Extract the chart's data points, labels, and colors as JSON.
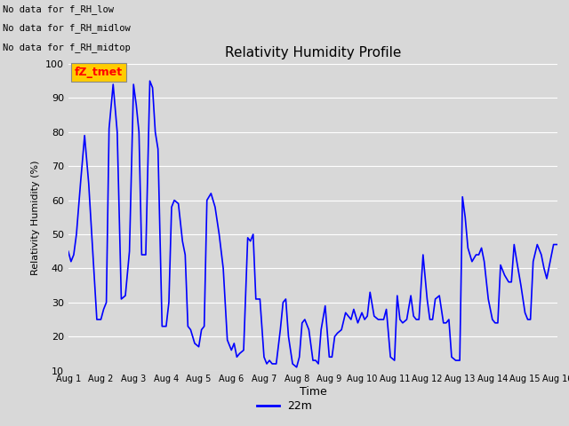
{
  "title": "Relativity Humidity Profile",
  "xlabel": "Time",
  "ylabel": "Relativity Humidity (%)",
  "ylim": [
    10,
    100
  ],
  "yticks": [
    10,
    20,
    30,
    40,
    50,
    60,
    70,
    80,
    90,
    100
  ],
  "line_color": "blue",
  "line_width": 1.2,
  "legend_label": "22m",
  "legend_line_color": "blue",
  "fig_bg_color": "#d8d8d8",
  "plot_bg_color": "#d8d8d8",
  "grid_color": "white",
  "annotations_left": [
    "No data for f_RH_low",
    "No data for f_RH_midlow",
    "No data for f_RH_midtop"
  ],
  "annotation_box_text": "fZ_tmet",
  "annotation_box_color": "#ffcc00",
  "annotation_box_text_color": "red",
  "x_tick_labels": [
    "Aug 1",
    "Aug 2",
    "Aug 3",
    "Aug 4",
    "Aug 5",
    "Aug 6",
    "Aug 7",
    "Aug 8",
    "Aug 9",
    "Aug 10",
    "Aug 11",
    "Aug 12",
    "Aug 13",
    "Aug 14",
    "Aug 15",
    "Aug 16"
  ],
  "x_tick_positions": [
    0,
    24,
    48,
    72,
    96,
    120,
    144,
    168,
    192,
    216,
    240,
    264,
    288,
    312,
    336,
    360
  ],
  "xlim": [
    0,
    360
  ],
  "data_x": [
    0,
    2,
    4,
    6,
    9,
    12,
    15,
    18,
    21,
    24,
    26,
    28,
    30,
    33,
    36,
    39,
    42,
    45,
    48,
    50,
    52,
    54,
    57,
    60,
    62,
    64,
    66,
    69,
    72,
    74,
    76,
    78,
    81,
    84,
    86,
    88,
    90,
    93,
    96,
    98,
    100,
    102,
    105,
    108,
    111,
    114,
    117,
    120,
    122,
    124,
    126,
    129,
    132,
    134,
    136,
    138,
    141,
    144,
    146,
    148,
    150,
    153,
    156,
    158,
    160,
    162,
    165,
    168,
    170,
    172,
    174,
    177,
    180,
    182,
    184,
    186,
    189,
    192,
    194,
    196,
    198,
    201,
    204,
    206,
    208,
    210,
    213,
    216,
    218,
    220,
    222,
    225,
    228,
    230,
    232,
    234,
    237,
    240,
    242,
    244,
    246,
    249,
    252,
    254,
    256,
    258,
    261,
    264,
    266,
    268,
    270,
    273,
    276,
    278,
    280,
    282,
    285,
    288,
    290,
    292,
    294,
    297,
    300,
    302,
    304,
    306,
    309,
    312,
    314,
    316,
    318,
    321,
    324,
    326,
    328,
    330,
    333,
    336,
    338,
    340,
    342,
    345,
    348,
    350,
    352,
    354,
    357,
    360
  ],
  "data_y": [
    45,
    42,
    44,
    50,
    65,
    79,
    65,
    45,
    25,
    25,
    28,
    30,
    81,
    94,
    80,
    31,
    32,
    45,
    94,
    88,
    80,
    44,
    44,
    95,
    93,
    80,
    75,
    23,
    23,
    30,
    58,
    60,
    59,
    48,
    44,
    23,
    22,
    18,
    17,
    22,
    23,
    60,
    62,
    58,
    50,
    40,
    19,
    16,
    18,
    14,
    15,
    16,
    49,
    48,
    50,
    31,
    31,
    14,
    12,
    13,
    12,
    12,
    22,
    30,
    31,
    20,
    12,
    11,
    14,
    24,
    25,
    22,
    13,
    13,
    12,
    22,
    29,
    14,
    14,
    20,
    21,
    22,
    27,
    26,
    25,
    28,
    24,
    27,
    25,
    26,
    33,
    26,
    25,
    25,
    25,
    28,
    14,
    13,
    32,
    25,
    24,
    25,
    32,
    26,
    25,
    25,
    44,
    31,
    25,
    25,
    31,
    32,
    24,
    24,
    25,
    14,
    13,
    13,
    61,
    55,
    46,
    42,
    44,
    44,
    46,
    42,
    31,
    25,
    24,
    24,
    41,
    38,
    36,
    36,
    47,
    42,
    35,
    27,
    25,
    25,
    42,
    47,
    44,
    40,
    37,
    41,
    47,
    47
  ]
}
